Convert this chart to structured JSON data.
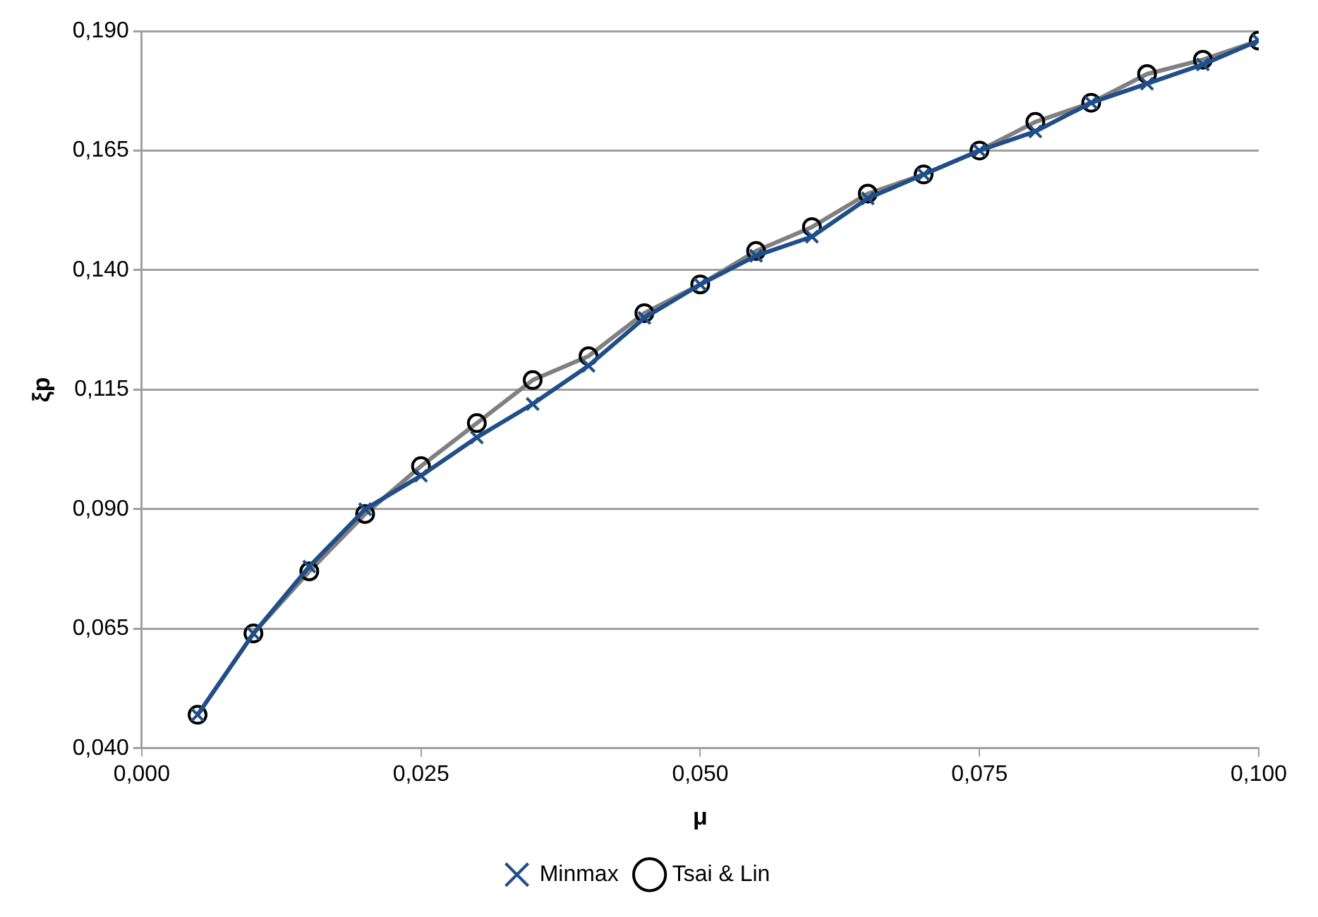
{
  "chart_data": {
    "type": "line",
    "xlabel": "μ",
    "ylabel": "ξp",
    "x": [
      0.005,
      0.01,
      0.015,
      0.02,
      0.025,
      0.03,
      0.035,
      0.04,
      0.045,
      0.05,
      0.055,
      0.06,
      0.065,
      0.07,
      0.075,
      0.08,
      0.085,
      0.09,
      0.095,
      0.1
    ],
    "series": [
      {
        "name": "Minmax",
        "color": "#1f4e89",
        "marker": "cross",
        "values": [
          0.047,
          0.064,
          0.078,
          0.09,
          0.097,
          0.105,
          0.112,
          0.12,
          0.13,
          0.137,
          0.143,
          0.147,
          0.155,
          0.16,
          0.165,
          0.169,
          0.175,
          0.179,
          0.183,
          0.188
        ]
      },
      {
        "name": "Tsai & Lin",
        "color": "#808080",
        "marker": "circle",
        "values": [
          0.047,
          0.064,
          0.077,
          0.089,
          0.099,
          0.108,
          0.117,
          0.122,
          0.131,
          0.137,
          0.144,
          0.149,
          0.156,
          0.16,
          0.165,
          0.171,
          0.175,
          0.181,
          0.184,
          0.188
        ]
      }
    ],
    "xlim": [
      0,
      0.1
    ],
    "xticks": [
      {
        "value": 0,
        "label": "0,000"
      },
      {
        "value": 0.025,
        "label": "0,025"
      },
      {
        "value": 0.05,
        "label": "0,050"
      },
      {
        "value": 0.075,
        "label": "0,075"
      },
      {
        "value": 0.1,
        "label": "0,100"
      }
    ],
    "ylim": [
      0.04,
      0.19
    ],
    "yticks": [
      {
        "value": 0.04,
        "label": "0,040"
      },
      {
        "value": 0.065,
        "label": "0,065"
      },
      {
        "value": 0.09,
        "label": "0,090"
      },
      {
        "value": 0.115,
        "label": "0,115"
      },
      {
        "value": 0.14,
        "label": "0,140"
      },
      {
        "value": 0.165,
        "label": "0,165"
      },
      {
        "value": 0.19,
        "label": "0,190"
      }
    ],
    "grid": "y",
    "legend": "bottom"
  }
}
